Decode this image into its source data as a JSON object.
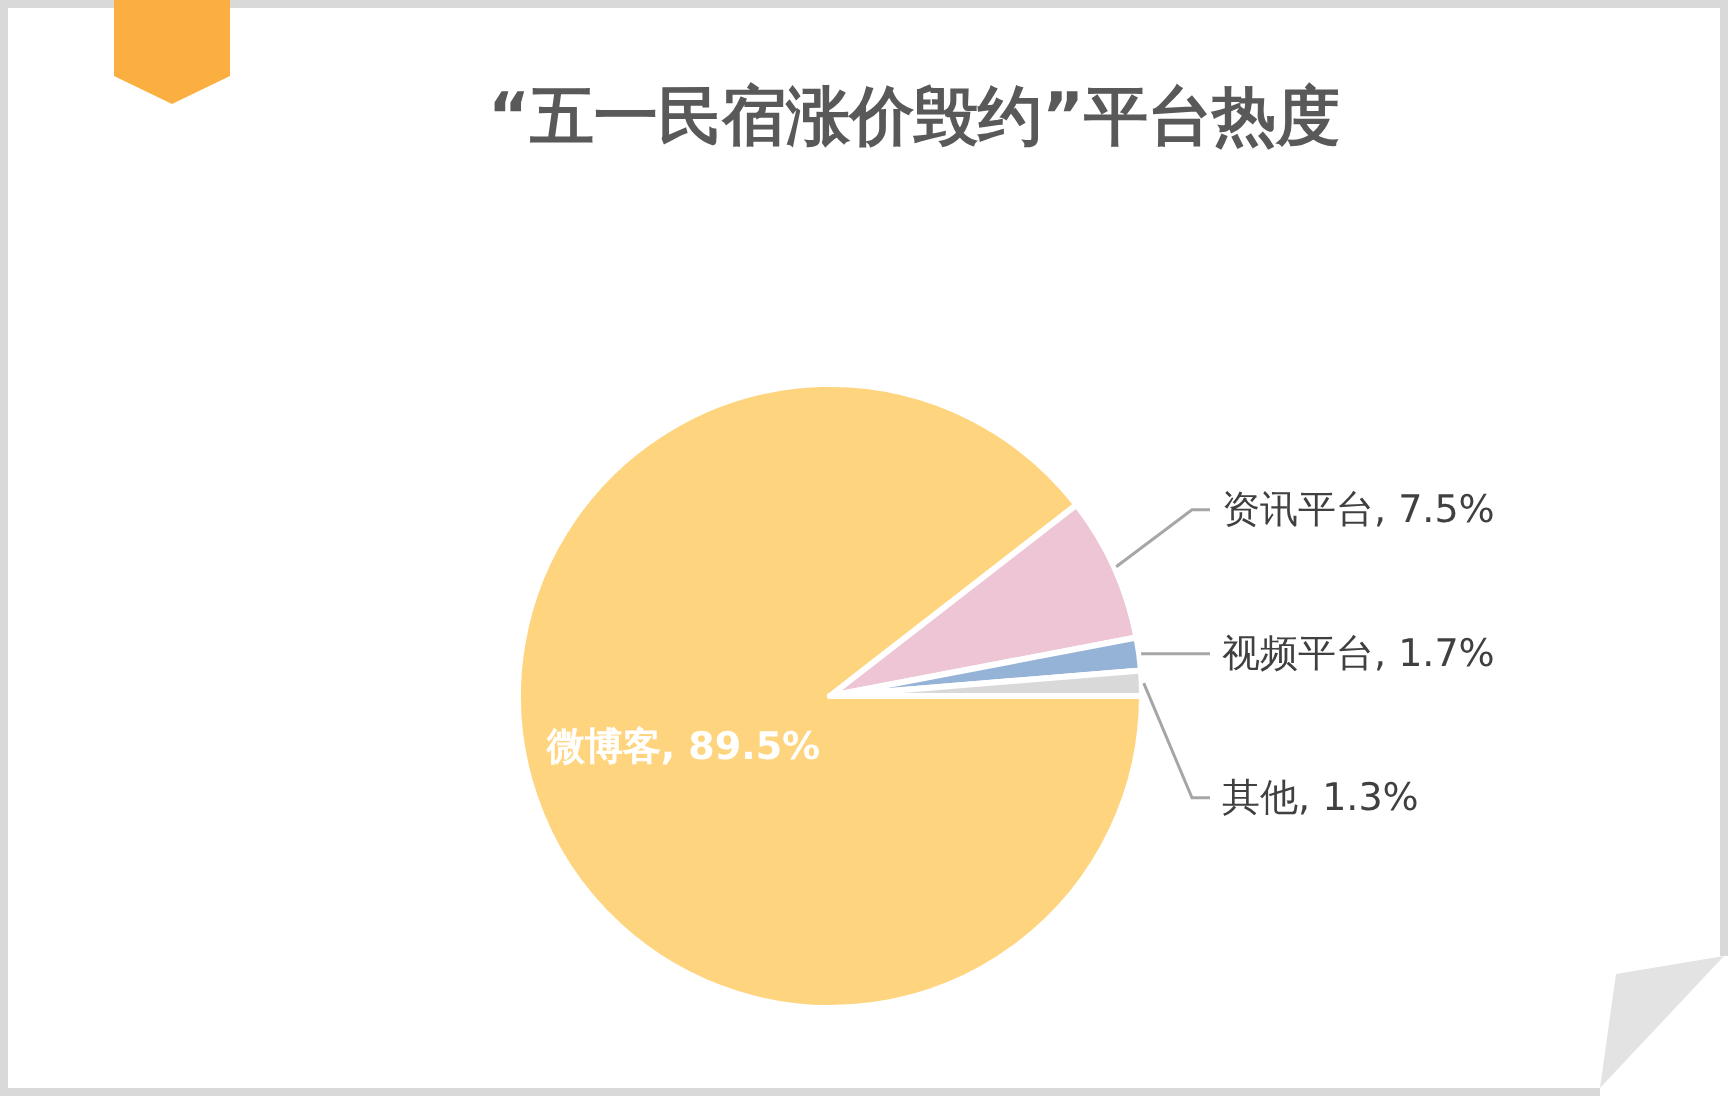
{
  "chart_data": {
    "type": "pie",
    "title": "“五一民宿涨价毁约”平台热度",
    "categories": [
      "微博客",
      "资讯平台",
      "视频平台",
      "其他"
    ],
    "values": [
      89.5,
      7.5,
      1.7,
      1.3
    ],
    "value_labels": [
      "89.5%",
      "7.5%",
      "1.7%",
      "1.3%"
    ],
    "colors": [
      "#fed47e",
      "#edc5d5",
      "#95b3d7",
      "#d9d9d9"
    ]
  }
}
